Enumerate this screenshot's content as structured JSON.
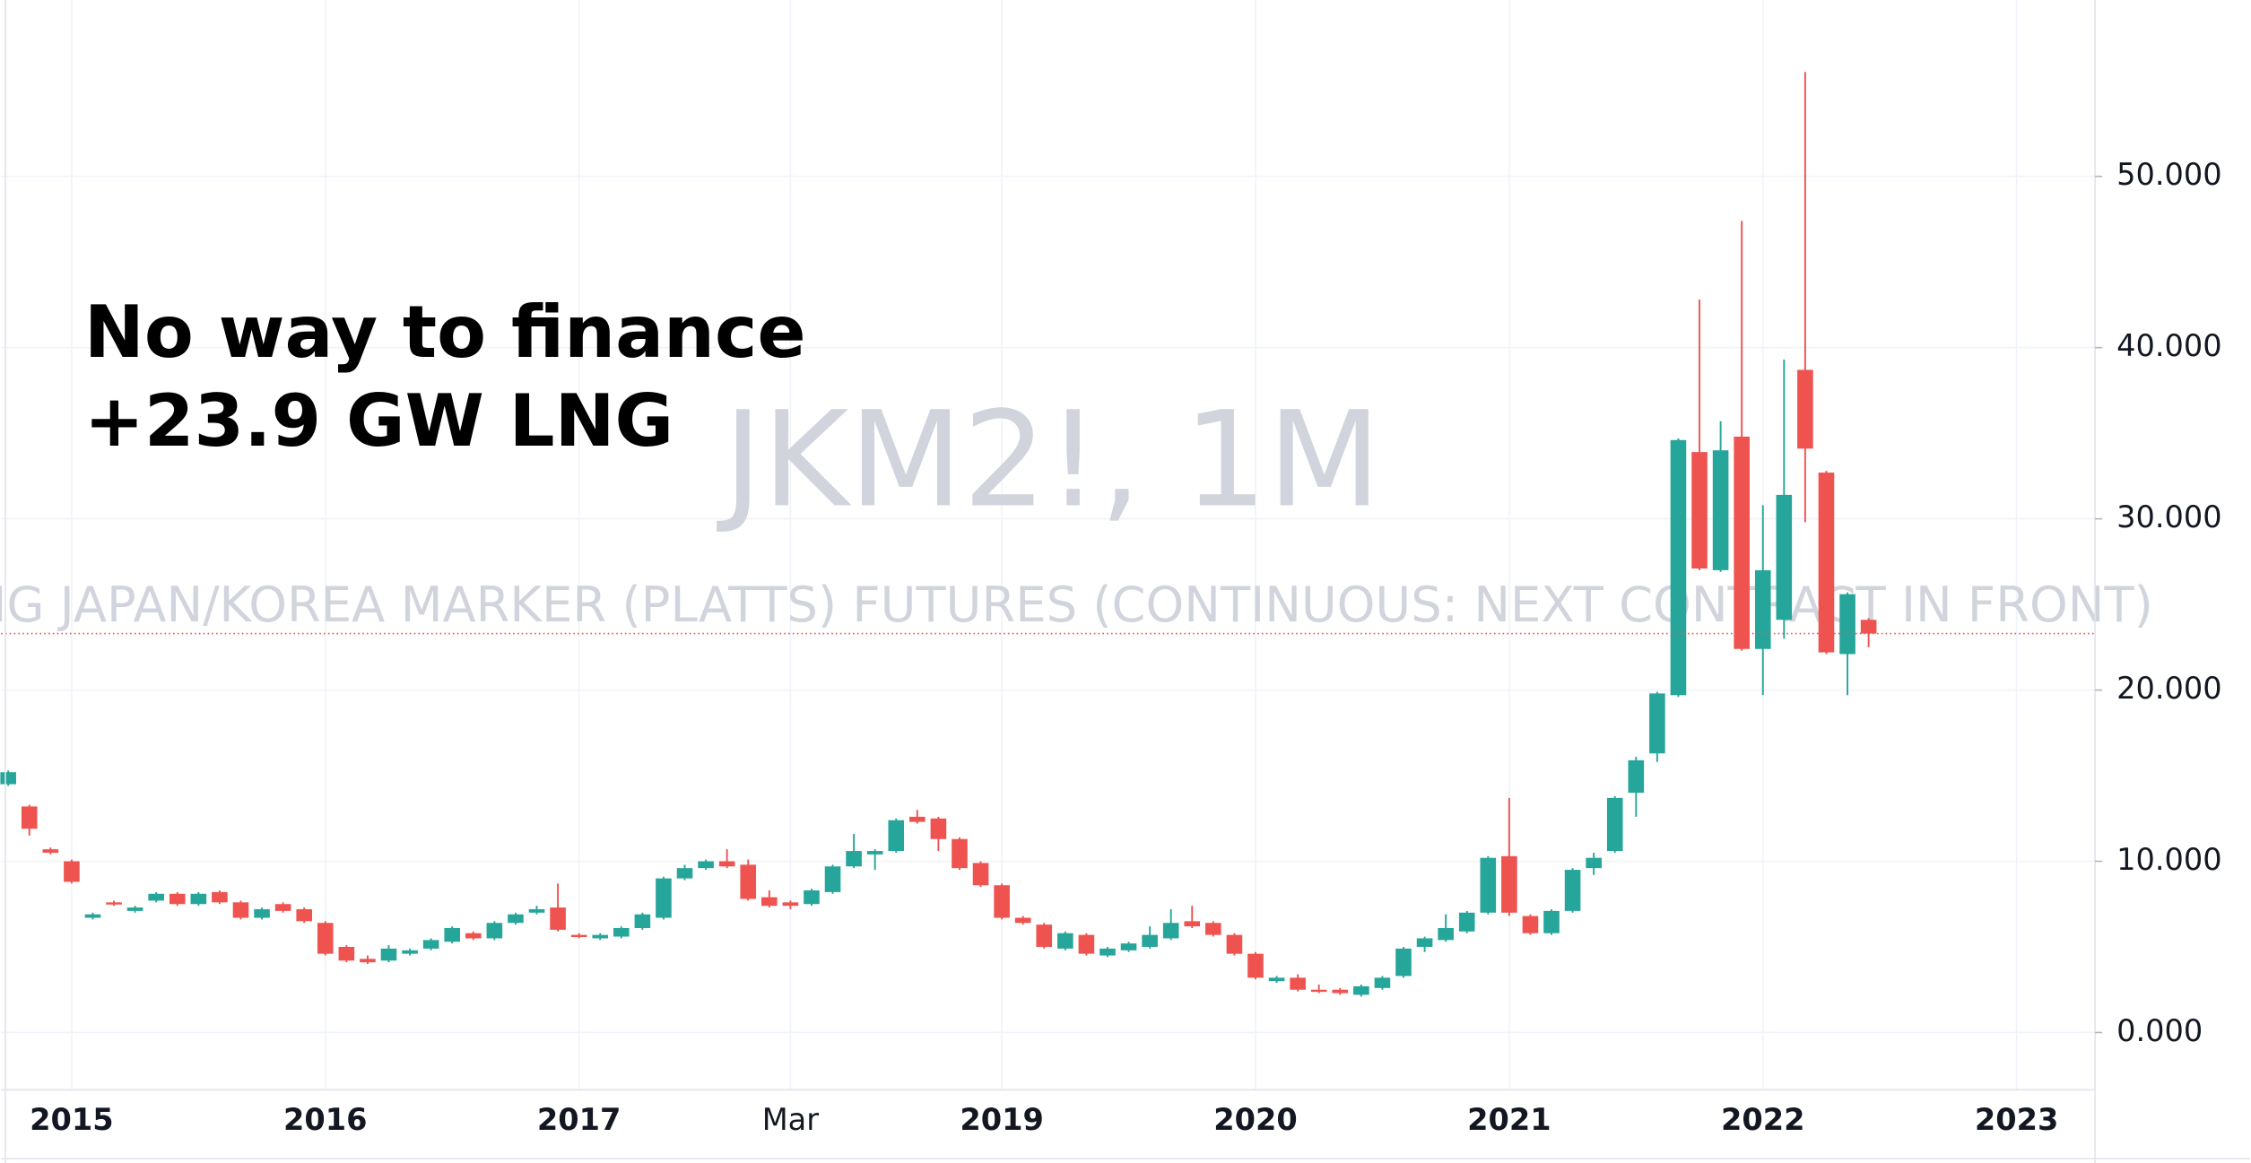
{
  "chart_data": {
    "type": "candlestick",
    "title": "JKM2!, 1M",
    "subtitle": "LNG JAPAN/KOREA MARKER (PLATTS) FUTURES (CONTINUOUS: NEXT CONTRACT IN FRONT)",
    "annotation": [
      "No way to finance",
      "+23.9 GW LNG"
    ],
    "up_color": "#26a69a",
    "down_color": "#ef5350",
    "grid": true,
    "categories": [
      null,
      null,
      null,
      "2015",
      null,
      null,
      null,
      null,
      null,
      null,
      null,
      null,
      null,
      null,
      null,
      "2016",
      null,
      null,
      null,
      null,
      null,
      null,
      null,
      null,
      null,
      null,
      null,
      "2017",
      null,
      null,
      null,
      null,
      null,
      null,
      null,
      null,
      null,
      "Mar",
      null,
      null,
      null,
      null,
      null,
      null,
      null,
      null,
      null,
      "2019",
      null,
      null,
      null,
      null,
      null,
      null,
      null,
      null,
      null,
      null,
      null,
      "2020",
      null,
      null,
      null,
      null,
      null,
      null,
      null,
      null,
      null,
      null,
      null,
      "2021",
      null,
      null,
      null,
      null,
      null,
      null,
      null,
      null,
      null,
      null,
      null,
      "2022",
      null,
      null,
      null,
      null,
      null,
      null,
      null,
      null,
      null,
      null,
      null,
      "2023",
      null,
      null,
      null
    ],
    "open": [
      14.5,
      13.2,
      10.7,
      10.0,
      6.7,
      7.6,
      7.1,
      7.7,
      8.1,
      7.5,
      8.2,
      7.6,
      6.7,
      7.5,
      7.2,
      6.4,
      5.0,
      4.3,
      4.2,
      4.6,
      4.9,
      5.3,
      5.8,
      5.5,
      6.4,
      7.0,
      7.3,
      5.7,
      5.5,
      5.6,
      6.1,
      6.7,
      9.0,
      9.6,
      10.0,
      9.8,
      7.9,
      7.6,
      7.5,
      8.2,
      9.7,
      10.4,
      10.6,
      12.6,
      12.5,
      11.3,
      9.9,
      8.6,
      6.7,
      6.3,
      4.9,
      5.7,
      4.5,
      4.8,
      5.0,
      5.5,
      6.5,
      6.4,
      5.7,
      4.6,
      3.0,
      3.2,
      2.5,
      2.5,
      2.2,
      2.6,
      3.3,
      5.0,
      5.4,
      5.9,
      7.0,
      10.3,
      6.8,
      5.8,
      7.1,
      9.6,
      10.6,
      14.0,
      16.3,
      19.7,
      33.9,
      27.0,
      34.8,
      22.4,
      24.1,
      38.7,
      32.7,
      22.1,
      24.1,
      null,
      null,
      null,
      null,
      null,
      null,
      null,
      null,
      null,
      null
    ],
    "high": [
      15.3,
      13.3,
      10.8,
      10.1,
      7.0,
      7.7,
      7.4,
      8.2,
      8.2,
      8.2,
      8.3,
      7.7,
      7.3,
      7.6,
      7.3,
      6.5,
      5.1,
      4.5,
      5.1,
      4.9,
      5.5,
      6.2,
      5.9,
      6.5,
      7.0,
      7.4,
      8.7,
      5.8,
      5.8,
      6.2,
      7.0,
      9.1,
      9.8,
      10.1,
      10.7,
      10.1,
      8.3,
      7.7,
      8.4,
      9.8,
      11.6,
      10.7,
      12.5,
      13.0,
      12.6,
      11.4,
      10.0,
      8.7,
      6.8,
      6.4,
      5.9,
      5.8,
      5.0,
      5.3,
      6.2,
      7.2,
      7.4,
      6.5,
      5.8,
      4.7,
      3.3,
      3.4,
      2.8,
      2.6,
      2.8,
      3.3,
      5.0,
      5.6,
      6.9,
      7.1,
      10.3,
      13.7,
      6.9,
      7.2,
      9.6,
      10.5,
      13.8,
      16.1,
      19.9,
      34.7,
      42.8,
      35.7,
      47.4,
      30.8,
      39.3,
      56.1,
      32.8,
      25.7,
      24.2,
      null,
      null,
      null,
      null,
      null,
      null,
      null,
      null,
      null,
      null
    ],
    "low": [
      14.4,
      11.5,
      10.4,
      8.7,
      6.6,
      7.4,
      7.0,
      7.6,
      7.4,
      7.4,
      7.5,
      6.6,
      6.6,
      7.0,
      6.4,
      4.5,
      4.1,
      4.0,
      4.1,
      4.5,
      4.8,
      5.2,
      5.4,
      5.4,
      6.3,
      6.9,
      5.9,
      5.5,
      5.4,
      5.5,
      6.0,
      6.6,
      8.9,
      9.5,
      9.6,
      7.7,
      7.3,
      7.2,
      7.4,
      8.1,
      9.6,
      9.5,
      10.5,
      12.2,
      10.6,
      9.5,
      8.5,
      6.6,
      6.3,
      4.9,
      4.8,
      4.5,
      4.4,
      4.7,
      4.9,
      5.4,
      6.1,
      5.6,
      4.5,
      3.1,
      2.9,
      2.4,
      2.3,
      2.2,
      2.1,
      2.5,
      3.2,
      4.7,
      5.3,
      5.8,
      6.9,
      6.8,
      5.7,
      5.7,
      7.0,
      9.2,
      10.5,
      12.6,
      15.8,
      19.6,
      27.0,
      26.9,
      22.3,
      19.7,
      23.0,
      29.8,
      22.1,
      19.7,
      22.5,
      null,
      null,
      null,
      null,
      null,
      null,
      null,
      null,
      null,
      null
    ],
    "close": [
      15.2,
      11.9,
      10.5,
      8.8,
      6.9,
      7.5,
      7.3,
      8.1,
      7.5,
      8.1,
      7.6,
      6.7,
      7.2,
      7.1,
      6.5,
      4.6,
      4.2,
      4.1,
      4.9,
      4.8,
      5.4,
      6.1,
      5.5,
      6.4,
      6.9,
      7.2,
      6.0,
      5.6,
      5.7,
      6.1,
      6.9,
      9.0,
      9.6,
      10.0,
      9.7,
      7.8,
      7.4,
      7.4,
      8.3,
      9.7,
      10.6,
      10.6,
      12.4,
      12.3,
      11.3,
      9.6,
      8.6,
      6.7,
      6.4,
      5.0,
      5.8,
      4.6,
      4.9,
      5.2,
      5.7,
      6.4,
      6.2,
      5.7,
      4.6,
      3.2,
      3.2,
      2.5,
      2.4,
      2.3,
      2.7,
      3.2,
      4.9,
      5.5,
      6.1,
      7.0,
      10.2,
      7.0,
      5.8,
      7.1,
      9.5,
      10.2,
      13.7,
      15.9,
      19.8,
      34.6,
      27.1,
      34.0,
      22.4,
      27.0,
      31.4,
      34.1,
      22.2,
      25.6,
      23.3,
      null,
      null,
      null,
      null,
      null,
      null,
      null,
      null,
      null,
      null
    ],
    "ylim": [
      -3.35,
      60.3
    ],
    "yticks": [
      {
        "value": 0,
        "label": "0.000"
      },
      {
        "value": 10,
        "label": "10.000"
      },
      {
        "value": 20,
        "label": "20.000"
      },
      {
        "value": 30,
        "label": "30.000"
      },
      {
        "value": 40,
        "label": "40.000"
      },
      {
        "value": 50,
        "label": "50.000"
      }
    ]
  }
}
